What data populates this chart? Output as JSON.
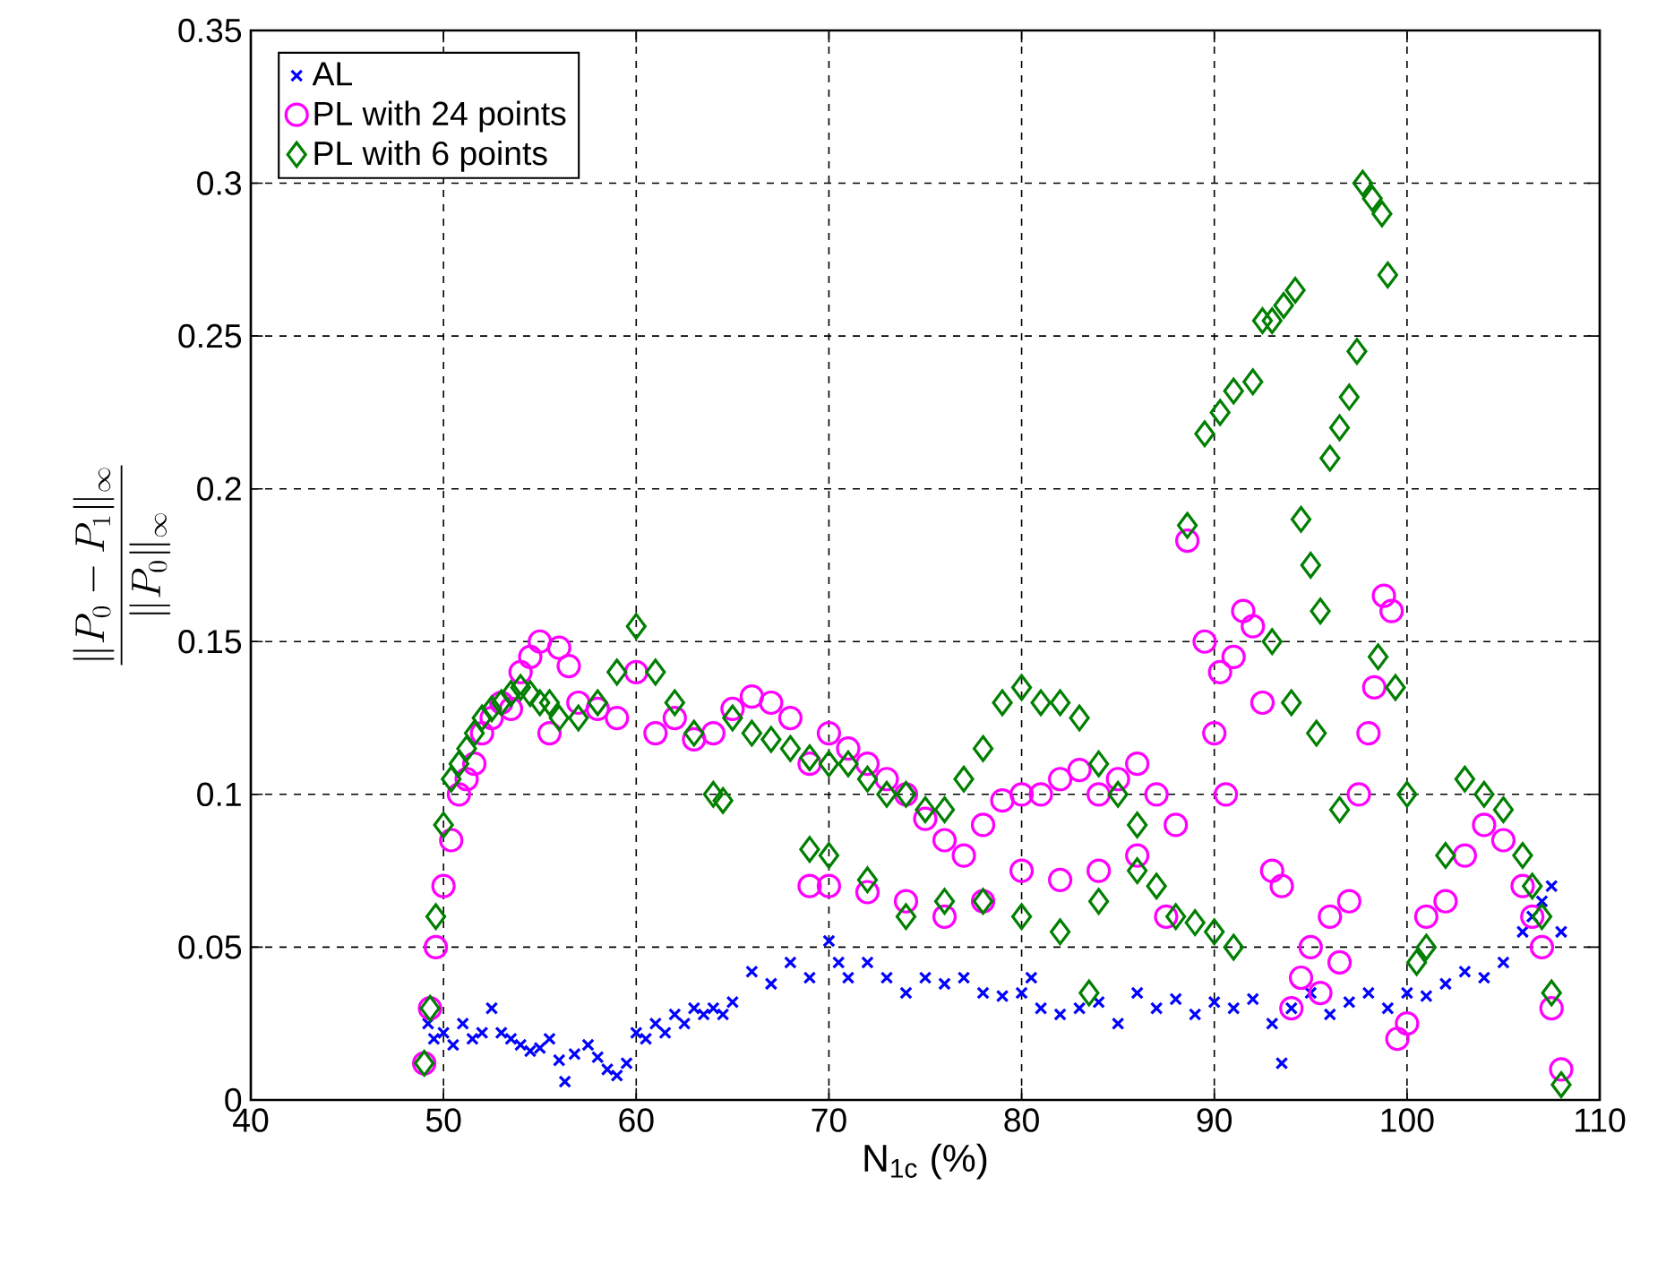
{
  "chart_data": {
    "type": "scatter",
    "xlabel": "N$_{1c}$ (%)",
    "ylabel": "\\frac{\\|P_0-P_1\\|_\\infty}{\\|P_0\\|_\\infty}",
    "xlim": [
      40,
      110
    ],
    "xticks": [
      40,
      50,
      60,
      70,
      80,
      90,
      100,
      110
    ],
    "ylim": [
      0,
      0.35
    ],
    "yticks": [
      0,
      0.05,
      0.1,
      0.15,
      0.2,
      0.25,
      0.3,
      0.35
    ],
    "grid": true,
    "legend": "top left",
    "series": [
      {
        "name": "AL",
        "color": "#0000ff",
        "marker": "cross",
        "x": [
          49.2,
          49.5,
          50,
          50.5,
          51,
          51.5,
          52,
          52.5,
          53,
          53.5,
          54,
          54.5,
          55,
          55.5,
          56,
          56.3,
          56.8,
          57.5,
          58,
          58.5,
          59,
          59.5,
          60,
          60.5,
          61,
          61.5,
          62,
          62.5,
          63,
          63.5,
          64,
          64.5,
          65,
          66,
          67,
          68,
          69,
          70,
          70.5,
          71,
          72,
          73,
          74,
          75,
          76,
          77,
          78,
          79,
          80,
          80.5,
          81,
          82,
          83,
          84,
          85,
          86,
          87,
          88,
          89,
          90,
          91,
          92,
          93,
          93.5,
          94,
          95,
          96,
          97,
          98,
          99,
          100,
          101,
          102,
          103,
          104,
          105,
          106,
          106.5,
          107,
          107.5,
          108
        ],
        "values": [
          0.025,
          0.02,
          0.022,
          0.018,
          0.025,
          0.02,
          0.022,
          0.03,
          0.022,
          0.02,
          0.018,
          0.016,
          0.017,
          0.02,
          0.013,
          0.006,
          0.015,
          0.018,
          0.014,
          0.01,
          0.008,
          0.012,
          0.022,
          0.02,
          0.025,
          0.022,
          0.028,
          0.025,
          0.03,
          0.028,
          0.03,
          0.028,
          0.032,
          0.042,
          0.038,
          0.045,
          0.04,
          0.052,
          0.045,
          0.04,
          0.045,
          0.04,
          0.035,
          0.04,
          0.038,
          0.04,
          0.035,
          0.034,
          0.035,
          0.04,
          0.03,
          0.028,
          0.03,
          0.032,
          0.025,
          0.035,
          0.03,
          0.033,
          0.028,
          0.032,
          0.03,
          0.033,
          0.025,
          0.012,
          0.03,
          0.035,
          0.028,
          0.032,
          0.035,
          0.03,
          0.035,
          0.034,
          0.038,
          0.042,
          0.04,
          0.045,
          0.055,
          0.06,
          0.065,
          0.07,
          0.055
        ]
      },
      {
        "name": "PL with 24 points",
        "color": "#ff00ff",
        "marker": "circle",
        "x": [
          49,
          49.3,
          49.6,
          50,
          50.4,
          50.8,
          51.2,
          51.6,
          52,
          52.5,
          53,
          53.5,
          54,
          54.5,
          55,
          55.5,
          56,
          56.5,
          57,
          58,
          59,
          60,
          61,
          62,
          63,
          64,
          65,
          66,
          67,
          68,
          69,
          70,
          71,
          72,
          73,
          74,
          75,
          76,
          77,
          78,
          79,
          80,
          81,
          82,
          83,
          84,
          85,
          86,
          87,
          88,
          69,
          70,
          72,
          74,
          76,
          78,
          80,
          82,
          84,
          86,
          87.5,
          88.6,
          89.5,
          90,
          90.3,
          90.6,
          91,
          91.5,
          92,
          92.5,
          93,
          93.5,
          94,
          94.5,
          95,
          95.5,
          96,
          96.5,
          97,
          97.5,
          98,
          98.3,
          98.8,
          99.2,
          99.5,
          100,
          101,
          102,
          103,
          104,
          105,
          106,
          106.5,
          107,
          107.5,
          108
        ],
        "values": [
          0.012,
          0.03,
          0.05,
          0.07,
          0.085,
          0.1,
          0.105,
          0.11,
          0.12,
          0.125,
          0.13,
          0.128,
          0.14,
          0.145,
          0.15,
          0.12,
          0.148,
          0.142,
          0.13,
          0.128,
          0.125,
          0.14,
          0.12,
          0.125,
          0.118,
          0.12,
          0.128,
          0.132,
          0.13,
          0.125,
          0.11,
          0.12,
          0.115,
          0.11,
          0.105,
          0.1,
          0.092,
          0.085,
          0.08,
          0.09,
          0.098,
          0.1,
          0.1,
          0.105,
          0.108,
          0.1,
          0.105,
          0.11,
          0.1,
          0.09,
          0.07,
          0.07,
          0.068,
          0.065,
          0.06,
          0.065,
          0.075,
          0.072,
          0.075,
          0.08,
          0.06,
          0.183,
          0.15,
          0.12,
          0.14,
          0.1,
          0.145,
          0.16,
          0.155,
          0.13,
          0.075,
          0.07,
          0.03,
          0.04,
          0.05,
          0.035,
          0.06,
          0.045,
          0.065,
          0.1,
          0.12,
          0.135,
          0.165,
          0.16,
          0.02,
          0.025,
          0.06,
          0.065,
          0.08,
          0.09,
          0.085,
          0.07,
          0.06,
          0.05,
          0.03,
          0.01
        ]
      },
      {
        "name": "PL with 6 points",
        "color": "#007f00",
        "marker": "diamond",
        "x": [
          49,
          49.3,
          49.6,
          50,
          50.4,
          50.8,
          51.2,
          51.6,
          52,
          52.5,
          53,
          53.5,
          54,
          54.5,
          55,
          55.5,
          56,
          57,
          58,
          59,
          60,
          61,
          62,
          63,
          64,
          64.5,
          65,
          66,
          67,
          68,
          69,
          70,
          71,
          72,
          73,
          74,
          75,
          76,
          77,
          78,
          79,
          80,
          81,
          82,
          83,
          84,
          85,
          86,
          69,
          70,
          72,
          74,
          76,
          78,
          80,
          82,
          84,
          86,
          87,
          88,
          89,
          90,
          91,
          83.5,
          88.6,
          89.5,
          90.3,
          91,
          92,
          92.5,
          93,
          93.6,
          94.2,
          93,
          94,
          94.5,
          95,
          95.5,
          96,
          96.5,
          97,
          97.4,
          97.7,
          98.2,
          98.7,
          99,
          98.5,
          99.4,
          100,
          96.5,
          95.3,
          100.5,
          101,
          102,
          103,
          104,
          105,
          106,
          106.5,
          107,
          107.5,
          108
        ],
        "values": [
          0.012,
          0.03,
          0.06,
          0.09,
          0.105,
          0.11,
          0.115,
          0.12,
          0.125,
          0.128,
          0.13,
          0.133,
          0.135,
          0.133,
          0.13,
          0.13,
          0.125,
          0.125,
          0.13,
          0.14,
          0.155,
          0.14,
          0.13,
          0.12,
          0.1,
          0.098,
          0.125,
          0.12,
          0.118,
          0.115,
          0.112,
          0.11,
          0.11,
          0.105,
          0.1,
          0.1,
          0.095,
          0.095,
          0.105,
          0.115,
          0.13,
          0.135,
          0.13,
          0.13,
          0.125,
          0.11,
          0.1,
          0.09,
          0.082,
          0.08,
          0.072,
          0.06,
          0.065,
          0.065,
          0.06,
          0.055,
          0.065,
          0.075,
          0.07,
          0.06,
          0.058,
          0.055,
          0.05,
          0.035,
          0.188,
          0.218,
          0.225,
          0.232,
          0.235,
          0.255,
          0.255,
          0.26,
          0.265,
          0.15,
          0.13,
          0.19,
          0.175,
          0.16,
          0.21,
          0.22,
          0.23,
          0.245,
          0.3,
          0.295,
          0.29,
          0.27,
          0.145,
          0.135,
          0.1,
          0.095,
          0.12,
          0.045,
          0.05,
          0.08,
          0.105,
          0.1,
          0.095,
          0.08,
          0.07,
          0.06,
          0.035,
          0.005
        ]
      }
    ]
  }
}
